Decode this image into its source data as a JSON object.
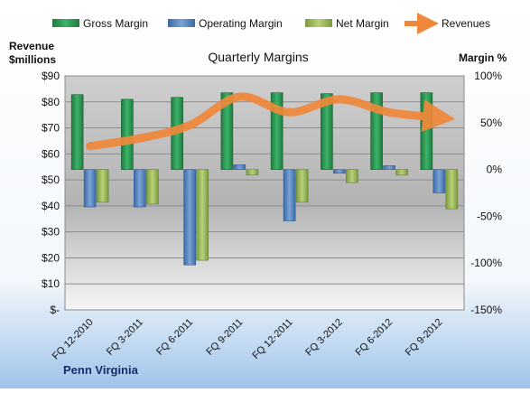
{
  "chart_data": {
    "type": "bar",
    "title": "Quarterly Margins",
    "company": "Penn Virginia",
    "left_axis": {
      "label_lines": [
        "Revenue",
        "$millions"
      ],
      "range": [
        0,
        90
      ],
      "ticks": [
        "$-",
        "$10",
        "$20",
        "$30",
        "$40",
        "$50",
        "$60",
        "$70",
        "$80",
        "$90"
      ]
    },
    "right_axis": {
      "label": "Margin %",
      "range": [
        -150,
        100
      ],
      "ticks": [
        "-150%",
        "-100%",
        "-50%",
        "0%",
        "50%",
        "100%"
      ]
    },
    "categories": [
      "FQ 12-2010",
      "FQ 3-2011",
      "FQ 6-2011",
      "FQ 9-2011",
      "FQ 12-2011",
      "FQ 3-2012",
      "FQ 6-2012",
      "FQ 9-2012"
    ],
    "series": [
      {
        "name": "Gross Margin",
        "type": "bar",
        "axis": "right",
        "color": "#2E9E55",
        "values": [
          80,
          75,
          77,
          82,
          82,
          81,
          82,
          82
        ]
      },
      {
        "name": "Operating Margin",
        "type": "bar",
        "axis": "right",
        "color": "#4F81BD",
        "values": [
          -40,
          -40,
          -102,
          5,
          -55,
          -4,
          4,
          -25
        ]
      },
      {
        "name": "Net Margin",
        "type": "bar",
        "axis": "right",
        "color": "#9BBB59",
        "values": [
          -35,
          -37,
          -97,
          -6,
          -35,
          -14,
          -6,
          -42
        ]
      },
      {
        "name": "Revenues",
        "type": "line",
        "axis": "left",
        "color": "#F0883A",
        "values": [
          63,
          66,
          71,
          82,
          76,
          81,
          76,
          74
        ]
      }
    ],
    "grid": true,
    "legend": "top"
  }
}
